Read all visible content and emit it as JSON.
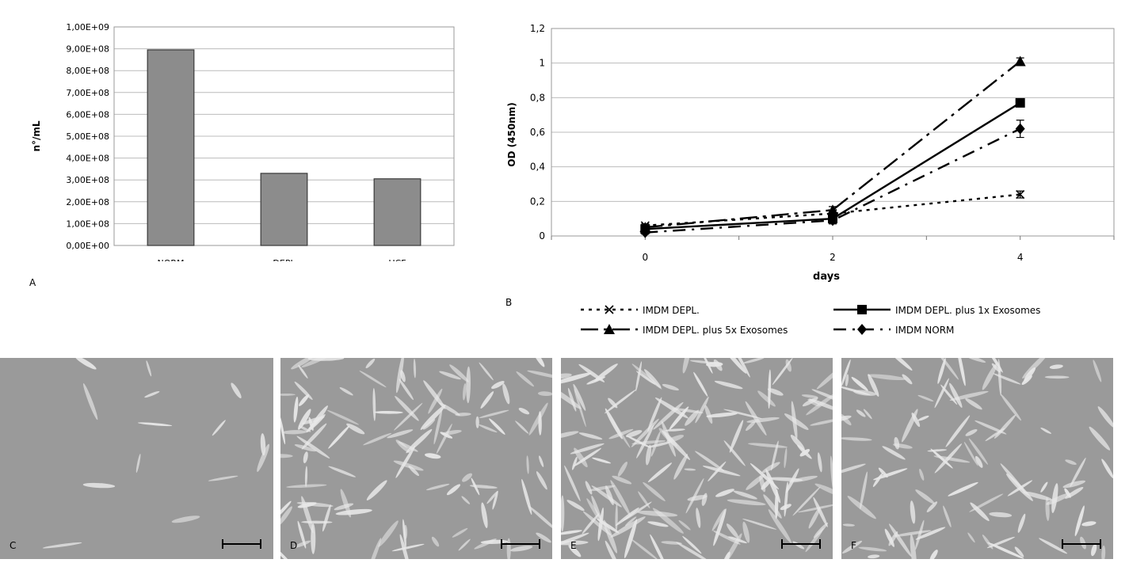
{
  "colors": {
    "bar_fill": "#8c8c8c",
    "grid": "#bcbcbc",
    "photo_bg": "#9a9a9a",
    "cell": "#e8e8e8"
  },
  "panels": {
    "a": "A",
    "b": "B",
    "c": "C",
    "d": "D",
    "e": "E",
    "f": "F"
  },
  "chart_data": [
    {
      "type": "bar",
      "panel": "A",
      "ylabel": "n°/mL",
      "xlabel": "",
      "categories": [
        "NORM",
        "DEPL",
        "UCF"
      ],
      "values": [
        895000000,
        330000000,
        305000000
      ],
      "ylim": [
        0,
        1000000000
      ],
      "yticks": [
        {
          "v": 0,
          "label": "0,00E+00"
        },
        {
          "v": 100000000,
          "label": "1,00E+08"
        },
        {
          "v": 200000000,
          "label": "2,00E+08"
        },
        {
          "v": 300000000,
          "label": "3,00E+08"
        },
        {
          "v": 400000000,
          "label": "4,00E+08"
        },
        {
          "v": 500000000,
          "label": "5,00E+08"
        },
        {
          "v": 600000000,
          "label": "6,00E+08"
        },
        {
          "v": 700000000,
          "label": "7,00E+08"
        },
        {
          "v": 800000000,
          "label": "8,00E+08"
        },
        {
          "v": 900000000,
          "label": "9,00E+08"
        },
        {
          "v": 1000000000,
          "label": "1,00E+09"
        }
      ],
      "grid": true
    },
    {
      "type": "line",
      "panel": "B",
      "xlabel": "days",
      "ylabel": "OD (450nm)",
      "x": [
        0,
        2,
        4
      ],
      "xlim": [
        -1,
        5
      ],
      "xticks": [
        {
          "v": 0,
          "label": "0"
        },
        {
          "v": 2,
          "label": "2"
        },
        {
          "v": 4,
          "label": "4"
        }
      ],
      "ylim": [
        0,
        1.2
      ],
      "yticks": [
        {
          "v": 0,
          "label": "0"
        },
        {
          "v": 0.2,
          "label": "0,2"
        },
        {
          "v": 0.4,
          "label": "0,4"
        },
        {
          "v": 0.6,
          "label": "0,6"
        },
        {
          "v": 0.8,
          "label": "0,8"
        },
        {
          "v": 1.0,
          "label": "1"
        },
        {
          "v": 1.2,
          "label": "1,2"
        }
      ],
      "grid": true,
      "legend_position": "bottom",
      "series": [
        {
          "name": "IMDM DEPL.",
          "values": [
            0.06,
            0.13,
            0.24
          ],
          "err": [
            0.01,
            0.02,
            0.02
          ],
          "marker": "x",
          "dash": "4,6"
        },
        {
          "name": "IMDM DEPL. plus 1x Exosomes",
          "values": [
            0.04,
            0.1,
            0.77
          ],
          "err": [
            0.01,
            0.01,
            0.01
          ],
          "marker": "square",
          "dash": ""
        },
        {
          "name": "IMDM DEPL. plus 5x Exosomes",
          "values": [
            0.05,
            0.15,
            1.01
          ],
          "err": [
            0.01,
            0.02,
            0.02
          ],
          "marker": "triangle",
          "dash": "22,7,4,7"
        },
        {
          "name": "IMDM NORM",
          "values": [
            0.02,
            0.09,
            0.62
          ],
          "err": [
            0.01,
            0.02,
            0.05
          ],
          "marker": "diamond",
          "dash": "16,8,3,8"
        }
      ]
    }
  ]
}
